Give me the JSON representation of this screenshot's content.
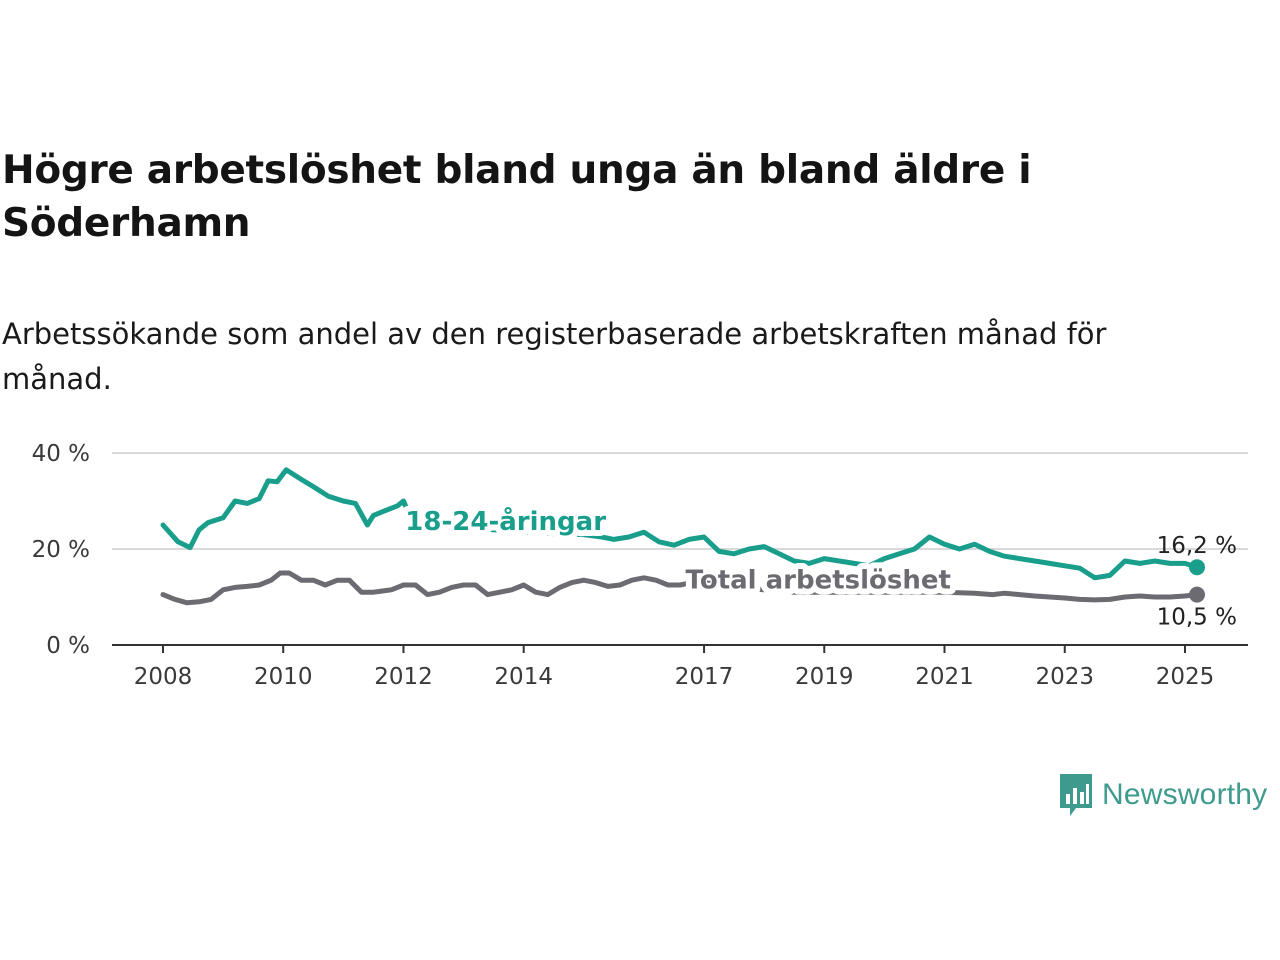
{
  "header": {
    "title": "Högre arbetslöshet bland unga än bland äldre i Söderhamn",
    "subtitle": "Arbetssökande som andel av den registerbaserade arbetskraften månad för månad."
  },
  "brand": {
    "name": "Newsworthy",
    "icon": "newsworthy-logo-icon",
    "color": "#3f9a8e"
  },
  "chart_data": {
    "type": "line",
    "title": "Högre arbetslöshet bland unga än bland äldre i Söderhamn",
    "subtitle": "Arbetssökande som andel av den registerbaserade arbetskraften månad för månad.",
    "xlabel": "",
    "ylabel": "",
    "xlim": [
      2008.0,
      2025.2
    ],
    "ylim": [
      0,
      40
    ],
    "y_ticks": [
      0,
      20,
      40
    ],
    "y_tick_labels": [
      "0 %",
      "20 %",
      "40 %"
    ],
    "x_ticks": [
      2008,
      2010,
      2012,
      2014,
      2017,
      2019,
      2021,
      2023,
      2025
    ],
    "x_tick_labels": [
      "2008",
      "2010",
      "2012",
      "2014",
      "2017",
      "2019",
      "2021",
      "2023",
      "2025"
    ],
    "grid": "horizontal",
    "legend": "inline",
    "series": [
      {
        "name": "18-24-åringar",
        "color": "#1a9e8c",
        "end_label": "16,2 %",
        "x": [
          2008.0,
          2008.25,
          2008.45,
          2008.6,
          2008.75,
          2009.0,
          2009.2,
          2009.4,
          2009.6,
          2009.75,
          2009.9,
          2010.05,
          2010.3,
          2010.5,
          2010.75,
          2011.0,
          2011.2,
          2011.4,
          2011.5,
          2011.7,
          2011.9,
          2012.0,
          2012.1,
          2012.3,
          2012.5,
          2013.0,
          2013.5,
          2014.0,
          2014.5,
          2015.0,
          2015.3,
          2015.5,
          2015.75,
          2016.0,
          2016.25,
          2016.5,
          2016.75,
          2017.0,
          2017.25,
          2017.5,
          2017.75,
          2018.0,
          2018.25,
          2018.5,
          2018.75,
          2019.0,
          2019.25,
          2019.5,
          2019.75,
          2020.0,
          2020.25,
          2020.5,
          2020.75,
          2021.0,
          2021.25,
          2021.5,
          2021.75,
          2022.0,
          2022.25,
          2022.5,
          2022.75,
          2023.0,
          2023.25,
          2023.5,
          2023.75,
          2024.0,
          2024.25,
          2024.5,
          2024.75,
          2025.0,
          2025.2
        ],
        "values": [
          25.0,
          21.5,
          20.3,
          24.0,
          25.5,
          26.5,
          30.0,
          29.5,
          30.5,
          34.2,
          34.0,
          36.5,
          34.5,
          33.0,
          31.0,
          30.0,
          29.5,
          25.0,
          27.0,
          28.0,
          29.0,
          30.0,
          27.0,
          26.0,
          25.0,
          24.5,
          24.0,
          23.5,
          23.2,
          23.0,
          22.5,
          22.0,
          22.5,
          23.5,
          21.5,
          20.8,
          22.0,
          22.5,
          19.5,
          19.0,
          20.0,
          20.5,
          19.0,
          17.5,
          17.0,
          18.0,
          17.5,
          17.0,
          16.5,
          18.0,
          19.0,
          20.0,
          22.5,
          21.0,
          20.0,
          21.0,
          19.5,
          18.5,
          18.0,
          17.5,
          17.0,
          16.5,
          16.0,
          14.0,
          14.5,
          17.5,
          17.0,
          17.5,
          17.0,
          17.0,
          16.2
        ]
      },
      {
        "name": "Total arbetslöshet",
        "color": "#6d6b72",
        "end_label": "10,5 %",
        "x": [
          2008.0,
          2008.2,
          2008.4,
          2008.6,
          2008.8,
          2009.0,
          2009.2,
          2009.4,
          2009.6,
          2009.8,
          2009.95,
          2010.1,
          2010.3,
          2010.5,
          2010.7,
          2010.9,
          2011.1,
          2011.3,
          2011.5,
          2011.8,
          2012.0,
          2012.2,
          2012.4,
          2012.6,
          2012.8,
          2013.0,
          2013.2,
          2013.4,
          2013.6,
          2013.8,
          2014.0,
          2014.2,
          2014.4,
          2014.6,
          2014.8,
          2015.0,
          2015.2,
          2015.4,
          2015.6,
          2015.8,
          2016.0,
          2016.2,
          2016.4,
          2016.6,
          2016.8,
          2017.0,
          2017.3,
          2017.6,
          2018.0,
          2018.5,
          2019.0,
          2019.5,
          2020.0,
          2020.5,
          2021.0,
          2021.5,
          2021.8,
          2022.0,
          2022.25,
          2022.5,
          2022.75,
          2023.0,
          2023.25,
          2023.5,
          2023.75,
          2024.0,
          2024.25,
          2024.5,
          2024.75,
          2025.0,
          2025.2
        ],
        "values": [
          10.5,
          9.5,
          8.8,
          9.0,
          9.5,
          11.5,
          12.0,
          12.2,
          12.5,
          13.5,
          15.0,
          15.0,
          13.5,
          13.5,
          12.5,
          13.5,
          13.5,
          11.0,
          11.0,
          11.5,
          12.5,
          12.5,
          10.5,
          11.0,
          12.0,
          12.5,
          12.5,
          10.5,
          11.0,
          11.5,
          12.5,
          11.0,
          10.5,
          12.0,
          13.0,
          13.5,
          13.0,
          12.2,
          12.5,
          13.5,
          14.0,
          13.5,
          12.5,
          12.5,
          13.0,
          13.0,
          12.5,
          12.0,
          11.5,
          11.0,
          11.0,
          11.0,
          11.0,
          11.0,
          11.0,
          10.8,
          10.5,
          10.8,
          10.5,
          10.2,
          10.0,
          9.8,
          9.5,
          9.4,
          9.5,
          10.0,
          10.2,
          10.0,
          10.0,
          10.2,
          10.5
        ]
      }
    ],
    "annotations": [
      {
        "text": "18-24-åringar",
        "series": 0,
        "at_x": 2013.7,
        "at_y": 24.0
      },
      {
        "text": "Total arbetslöshet",
        "series": 1,
        "at_x": 2018.9,
        "at_y": 11.8
      }
    ]
  }
}
